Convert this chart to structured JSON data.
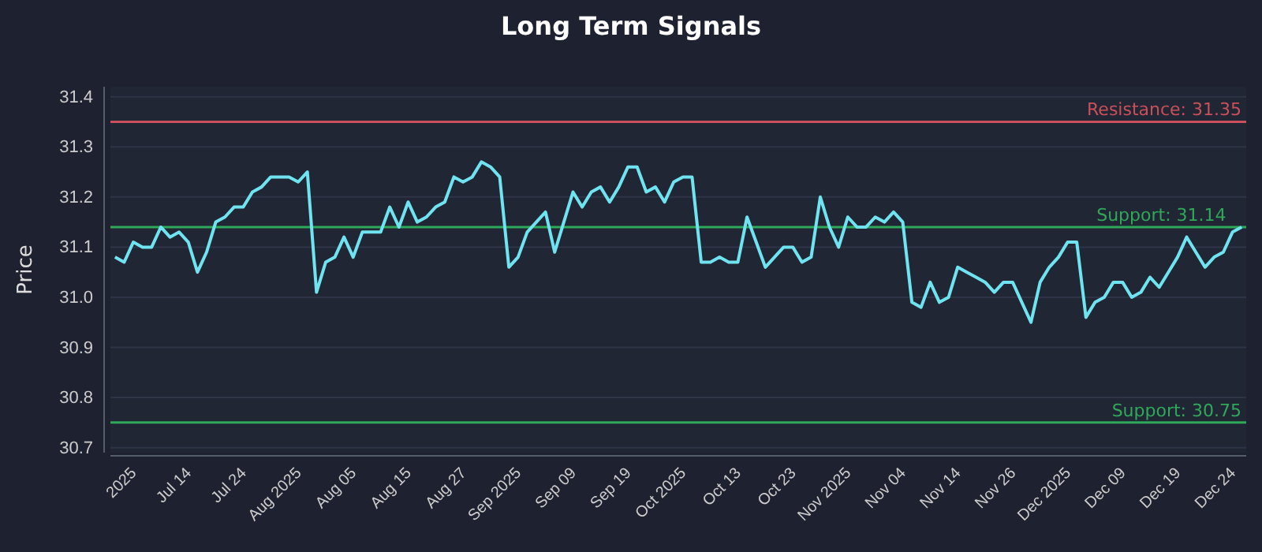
{
  "chart_data": {
    "type": "line",
    "title": "Long Term Signals",
    "ylabel": "Price",
    "categories": [
      null,
      null,
      "2025",
      null,
      null,
      null,
      null,
      null,
      "Jul 14",
      null,
      null,
      null,
      null,
      null,
      "Jul 24",
      null,
      null,
      null,
      null,
      null,
      "Aug 2025",
      null,
      null,
      null,
      null,
      null,
      "Aug 05",
      null,
      null,
      null,
      null,
      null,
      "Aug 15",
      null,
      null,
      null,
      null,
      null,
      "Aug 27",
      null,
      null,
      null,
      null,
      null,
      "Sep 2025",
      null,
      null,
      null,
      null,
      null,
      "Sep 09",
      null,
      null,
      null,
      null,
      null,
      "Sep 19",
      null,
      null,
      null,
      null,
      null,
      "Oct 2025",
      null,
      null,
      null,
      null,
      null,
      "Oct 13",
      null,
      null,
      null,
      null,
      null,
      "Oct 23",
      null,
      null,
      null,
      null,
      null,
      "Nov 2025",
      null,
      null,
      null,
      null,
      null,
      "Nov 04",
      null,
      null,
      null,
      null,
      null,
      "Nov 14",
      null,
      null,
      null,
      null,
      null,
      "Nov 26",
      null,
      null,
      null,
      null,
      null,
      "Dec 2025",
      null,
      null,
      null,
      null,
      null,
      "Dec 09",
      null,
      null,
      null,
      null,
      null,
      "Dec 19",
      null,
      null,
      null,
      null,
      null,
      "Dec 24",
      null
    ],
    "series": [
      {
        "color": "#6fe3f0",
        "values": [
          31.08,
          31.07,
          31.11,
          31.1,
          31.1,
          31.14,
          31.12,
          31.13,
          31.11,
          31.05,
          31.09,
          31.15,
          31.16,
          31.18,
          31.18,
          31.21,
          31.22,
          31.24,
          31.24,
          31.24,
          31.23,
          31.25,
          31.01,
          31.07,
          31.08,
          31.12,
          31.08,
          31.13,
          31.13,
          31.13,
          31.18,
          31.14,
          31.19,
          31.15,
          31.16,
          31.18,
          31.19,
          31.24,
          31.23,
          31.24,
          31.27,
          31.26,
          31.24,
          31.06,
          31.08,
          31.13,
          31.15,
          31.17,
          31.09,
          31.15,
          31.21,
          31.18,
          31.21,
          31.22,
          31.19,
          31.22,
          31.26,
          31.26,
          31.21,
          31.22,
          31.19,
          31.23,
          31.24,
          31.24,
          31.07,
          31.07,
          31.08,
          31.07,
          31.07,
          31.16,
          31.11,
          31.06,
          31.08,
          31.1,
          31.1,
          31.07,
          31.08,
          31.2,
          31.14,
          31.1,
          31.16,
          31.14,
          31.14,
          31.16,
          31.15,
          31.17,
          31.15,
          30.99,
          30.98,
          31.03,
          30.99,
          31.0,
          31.06,
          31.05,
          31.04,
          31.03,
          31.01,
          31.03,
          31.03,
          30.99,
          30.95,
          31.03,
          31.06,
          31.08,
          31.11,
          31.11,
          30.96,
          30.99,
          31.0,
          31.03,
          31.03,
          31.0,
          31.01,
          31.04,
          31.02,
          31.05,
          31.08,
          31.12,
          31.09,
          31.06,
          31.08,
          31.09,
          31.13,
          31.14
        ]
      }
    ],
    "ylim": [
      30.69,
      31.42
    ],
    "yticks": [
      30.7,
      30.8,
      30.9,
      {
        "value": 31.0,
        "label": "31.0"
      },
      31.1,
      31.2,
      31.3,
      31.4
    ],
    "grid": "y",
    "ref_lines": [
      {
        "axis": "y",
        "value": 31.35,
        "label": "Resistance: 31.35",
        "color": "#c9505a"
      },
      {
        "axis": "y",
        "value": 31.14,
        "label": "Support: 31.14",
        "color": "#2fa85a"
      },
      {
        "axis": "y",
        "value": 30.75,
        "label": "Support: 30.75",
        "color": "#2fa85a"
      }
    ]
  }
}
